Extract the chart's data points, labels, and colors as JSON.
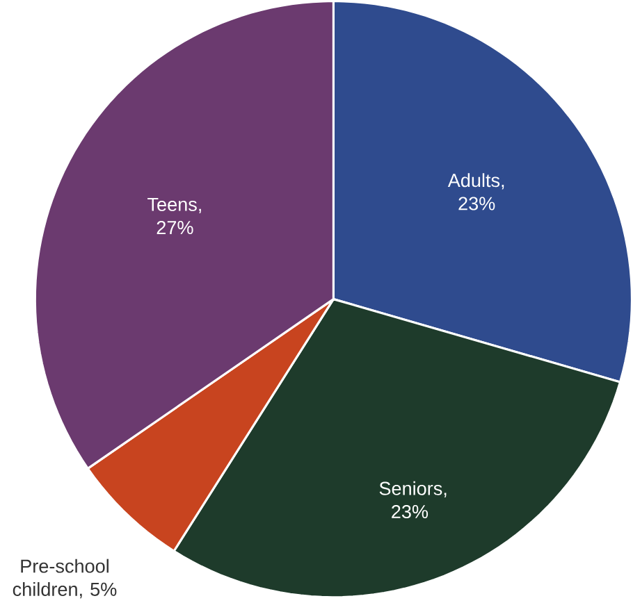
{
  "chart_data": {
    "type": "pie",
    "categories": [
      "Adults, 23%",
      "Seniors, 23%",
      "Pre-school children, 5%",
      "Teens, 27%"
    ],
    "values": [
      23,
      23,
      5,
      27
    ],
    "colors": [
      "#2f4b8e",
      "#1e3b2b",
      "#c8441f",
      "#6b3a6f"
    ]
  }
}
